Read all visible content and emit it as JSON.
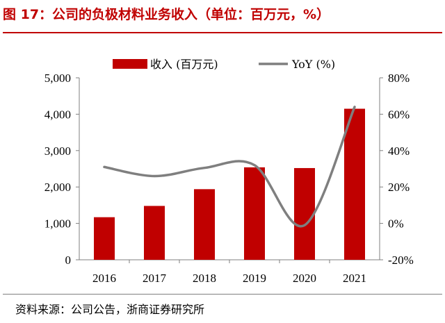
{
  "title": "图 17：公司的负极材料业务收入（单位：百万元，%）",
  "source": "资料来源：公司公告，浙商证券研究所",
  "colors": {
    "accent": "#c00000",
    "bar": "#c00000",
    "line": "#7f7f7f"
  },
  "chart_data": {
    "type": "bar",
    "title": "图 17：公司的负极材料业务收入（单位：百万元，%）",
    "categories": [
      "2016",
      "2017",
      "2018",
      "2019",
      "2020",
      "2021"
    ],
    "series": [
      {
        "name": "收入 (百万元)",
        "type": "bar",
        "axis": "left",
        "values": [
          1170,
          1480,
          1940,
          2540,
          2520,
          4150
        ]
      },
      {
        "name": "YoY (%)",
        "type": "line",
        "axis": "right",
        "values": [
          31,
          26,
          30.5,
          32,
          -1,
          64
        ]
      }
    ],
    "left_axis": {
      "ylim": [
        0,
        5000
      ],
      "ticks": [
        0,
        1000,
        2000,
        3000,
        4000,
        5000
      ],
      "tick_labels": [
        "0",
        "1,000",
        "2,000",
        "3,000",
        "4,000",
        "5,000"
      ]
    },
    "right_axis": {
      "ylim": [
        -20,
        80
      ],
      "ticks": [
        -20,
        0,
        20,
        40,
        60,
        80
      ],
      "tick_labels": [
        "-20%",
        "0%",
        "20%",
        "40%",
        "60%",
        "80%"
      ]
    },
    "legend": {
      "placement": "top-center",
      "entries": [
        "收入 (百万元)",
        "YoY (%)"
      ]
    },
    "grid": false
  }
}
